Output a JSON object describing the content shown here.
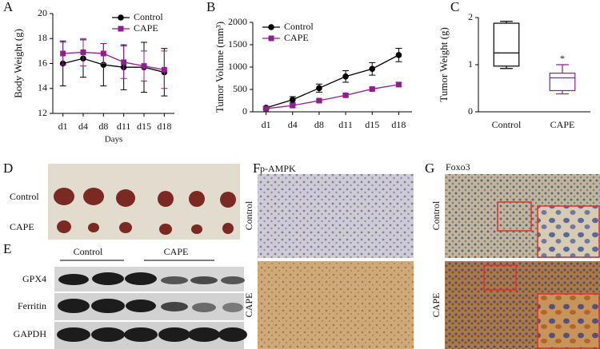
{
  "chart_data": [
    {
      "type": "line",
      "panel": "A",
      "ylabel": "Body Weight (g)",
      "xlabel": "Days",
      "categories": [
        "d1",
        "d4",
        "d8",
        "d11",
        "d15",
        "d18"
      ],
      "ylim": [
        12,
        20
      ],
      "yticks": [
        12,
        14,
        16,
        18,
        20
      ],
      "legend": "upper right",
      "series": [
        {
          "name": "Control",
          "color": "#000000",
          "marker": "circle",
          "values": [
            16.0,
            16.4,
            15.9,
            15.7,
            15.7,
            15.3
          ],
          "errors": [
            1.8,
            1.5,
            1.7,
            1.8,
            2.0,
            1.9
          ]
        },
        {
          "name": "CAPE",
          "color": "#8e1f8e",
          "marker": "square",
          "values": [
            16.8,
            16.9,
            16.8,
            16.1,
            15.8,
            15.5
          ],
          "errors": [
            0.9,
            1.1,
            0.8,
            1.3,
            1.2,
            1.5
          ]
        }
      ]
    },
    {
      "type": "line",
      "panel": "B",
      "ylabel": "Tumor Volume (mm³)",
      "categories": [
        "d1",
        "d4",
        "d8",
        "d11",
        "d15",
        "d18"
      ],
      "ylim": [
        0,
        2000
      ],
      "yticks": [
        0,
        500,
        1000,
        1500,
        2000
      ],
      "legend": "upper left",
      "series": [
        {
          "name": "Control",
          "color": "#000000",
          "marker": "circle",
          "values": [
            90,
            270,
            530,
            790,
            960,
            1270
          ],
          "errors": [
            30,
            70,
            90,
            130,
            140,
            150
          ]
        },
        {
          "name": "CAPE",
          "color": "#8e1f8e",
          "marker": "square",
          "values": [
            70,
            140,
            250,
            370,
            510,
            610
          ],
          "errors": [
            20,
            30,
            30,
            30,
            30,
            50
          ]
        }
      ]
    },
    {
      "type": "box",
      "panel": "C",
      "ylabel": "Tumor Weight (g)",
      "categories": [
        "Control",
        "CAPE"
      ],
      "ylim": [
        0,
        2
      ],
      "yticks": [
        0,
        1,
        2
      ],
      "boxes": [
        {
          "color": "#000000",
          "min": 0.92,
          "q1": 0.97,
          "median": 1.25,
          "q3": 1.88,
          "max": 1.92
        },
        {
          "color": "#8e1f8e",
          "min": 0.38,
          "q1": 0.45,
          "median": 0.72,
          "q3": 0.82,
          "max": 1.0,
          "annotation": "*"
        }
      ]
    }
  ],
  "panel_d": {
    "panel": "D",
    "rows": [
      "Control",
      "CAPE"
    ]
  },
  "panel_e": {
    "panel": "E",
    "groups": [
      "Control",
      "CAPE"
    ],
    "rows": [
      "GPX4",
      "Ferritin",
      "GAPDH"
    ]
  },
  "panel_f": {
    "panel": "F",
    "title": "p-AMPK",
    "rows": [
      "Control",
      "CAPE"
    ]
  },
  "panel_g": {
    "panel": "G",
    "title": "Foxo3",
    "rows": [
      "Control",
      "CAPE"
    ]
  }
}
